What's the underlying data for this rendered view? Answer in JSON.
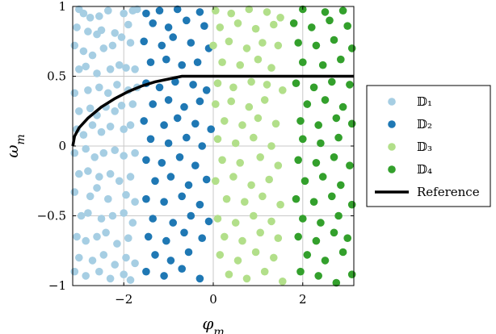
{
  "chart_data": {
    "type": "scatter",
    "xlabel": "φ_m",
    "ylabel": "ω_m",
    "xlim": [
      -3.1416,
      3.1416
    ],
    "ylim": [
      -1,
      1
    ],
    "grid": true,
    "legend_placement": "right-outside",
    "x_ticks": [
      {
        "v": -2,
        "label": "−2"
      },
      {
        "v": 0,
        "label": "0"
      },
      {
        "v": 2,
        "label": "2"
      }
    ],
    "y_ticks": [
      {
        "v": -1,
        "label": "−1"
      },
      {
        "v": -0.5,
        "label": "−0.5"
      },
      {
        "v": 0,
        "label": "0"
      },
      {
        "v": 0.5,
        "label": "0.5"
      },
      {
        "v": 1,
        "label": "1"
      }
    ],
    "series": [
      {
        "name": "𝔻₁",
        "color": "#a6cee3",
        "kind": "scatter",
        "points": [
          [
            -3.0,
            0.98
          ],
          [
            -2.9,
            0.95
          ],
          [
            -2.75,
            0.92
          ],
          [
            -2.55,
            0.93
          ],
          [
            -2.35,
            0.97
          ],
          [
            -2.0,
            0.95
          ],
          [
            -1.8,
            0.97
          ],
          [
            -1.7,
            0.98
          ],
          [
            -3.05,
            0.85
          ],
          [
            -2.8,
            0.82
          ],
          [
            -2.6,
            0.8
          ],
          [
            -2.5,
            0.83
          ],
          [
            -2.2,
            0.81
          ],
          [
            -1.9,
            0.87
          ],
          [
            -3.1,
            0.72
          ],
          [
            -2.9,
            0.68
          ],
          [
            -2.7,
            0.65
          ],
          [
            -2.45,
            0.7
          ],
          [
            -2.25,
            0.72
          ],
          [
            -2.05,
            0.78
          ],
          [
            -1.85,
            0.74
          ],
          [
            -3.0,
            0.55
          ],
          [
            -2.85,
            0.57
          ],
          [
            -2.6,
            0.52
          ],
          [
            -2.3,
            0.55
          ],
          [
            -2.1,
            0.58
          ],
          [
            -1.95,
            0.56
          ],
          [
            -1.75,
            0.55
          ],
          [
            -3.1,
            0.38
          ],
          [
            -2.8,
            0.4
          ],
          [
            -2.55,
            0.42
          ],
          [
            -2.35,
            0.38
          ],
          [
            -2.15,
            0.44
          ],
          [
            -1.9,
            0.4
          ],
          [
            -1.7,
            0.42
          ],
          [
            -3.0,
            0.25
          ],
          [
            -2.75,
            0.27
          ],
          [
            -2.6,
            0.22
          ],
          [
            -2.4,
            0.28
          ],
          [
            -2.2,
            0.25
          ],
          [
            -2.05,
            0.29
          ],
          [
            -1.8,
            0.3
          ],
          [
            -3.05,
            0.12
          ],
          [
            -2.9,
            0.08
          ],
          [
            -2.7,
            0.15
          ],
          [
            -2.5,
            0.1
          ],
          [
            -2.3,
            0.14
          ],
          [
            -2.0,
            0.12
          ],
          [
            -1.85,
            0.15
          ],
          [
            -3.1,
            -0.05
          ],
          [
            -2.85,
            -0.02
          ],
          [
            -2.65,
            -0.08
          ],
          [
            -2.45,
            -0.05
          ],
          [
            -2.2,
            -0.03
          ],
          [
            -2.0,
            -0.07
          ],
          [
            -1.75,
            -0.05
          ],
          [
            -3.0,
            -0.2
          ],
          [
            -2.8,
            -0.18
          ],
          [
            -2.55,
            -0.22
          ],
          [
            -2.3,
            -0.2
          ],
          [
            -2.1,
            -0.25
          ],
          [
            -1.85,
            -0.22
          ],
          [
            -3.1,
            -0.33
          ],
          [
            -2.75,
            -0.36
          ],
          [
            -2.6,
            -0.3
          ],
          [
            -2.35,
            -0.38
          ],
          [
            -1.95,
            -0.35
          ],
          [
            -1.75,
            -0.4
          ],
          [
            -2.95,
            -0.5
          ],
          [
            -2.8,
            -0.48
          ],
          [
            -2.5,
            -0.52
          ],
          [
            -2.25,
            -0.5
          ],
          [
            -2.0,
            -0.48
          ],
          [
            -1.8,
            -0.55
          ],
          [
            -3.05,
            -0.65
          ],
          [
            -2.85,
            -0.68
          ],
          [
            -2.6,
            -0.65
          ],
          [
            -2.4,
            -0.62
          ],
          [
            -2.15,
            -0.7
          ],
          [
            -1.9,
            -0.66
          ],
          [
            -3.0,
            -0.8
          ],
          [
            -2.7,
            -0.82
          ],
          [
            -2.45,
            -0.78
          ],
          [
            -2.2,
            -0.85
          ],
          [
            -1.95,
            -0.8
          ],
          [
            -1.75,
            -0.84
          ],
          [
            -3.1,
            -0.9
          ],
          [
            -2.85,
            -0.93
          ],
          [
            -2.55,
            -0.9
          ],
          [
            -2.3,
            -0.95
          ],
          [
            -2.0,
            -0.92
          ],
          [
            -1.85,
            -0.96
          ]
        ]
      },
      {
        "name": "𝔻₂",
        "color": "#1f78b4",
        "kind": "scatter",
        "points": [
          [
            -1.5,
            0.95
          ],
          [
            -1.2,
            0.97
          ],
          [
            -0.8,
            0.98
          ],
          [
            -0.3,
            0.96
          ],
          [
            -1.35,
            0.88
          ],
          [
            -1.0,
            0.85
          ],
          [
            -0.6,
            0.9
          ],
          [
            -0.2,
            0.86
          ],
          [
            -1.55,
            0.75
          ],
          [
            -1.15,
            0.72
          ],
          [
            -0.9,
            0.78
          ],
          [
            -0.5,
            0.74
          ],
          [
            -0.1,
            0.7
          ],
          [
            -1.4,
            0.6
          ],
          [
            -1.05,
            0.62
          ],
          [
            -0.7,
            0.58
          ],
          [
            -0.35,
            0.6
          ],
          [
            -1.5,
            0.45
          ],
          [
            -1.2,
            0.42
          ],
          [
            -0.85,
            0.46
          ],
          [
            -0.45,
            0.44
          ],
          [
            -0.15,
            0.4
          ],
          [
            -1.35,
            0.3
          ],
          [
            -1.0,
            0.33
          ],
          [
            -0.65,
            0.28
          ],
          [
            -0.3,
            0.32
          ],
          [
            -1.55,
            0.18
          ],
          [
            -1.1,
            0.15
          ],
          [
            -0.8,
            0.2
          ],
          [
            -0.4,
            0.16
          ],
          [
            -0.05,
            0.12
          ],
          [
            -1.4,
            0.05
          ],
          [
            -1.0,
            0.02
          ],
          [
            -0.6,
            0.06
          ],
          [
            -0.25,
            0.0
          ],
          [
            -1.5,
            -0.1
          ],
          [
            -1.15,
            -0.12
          ],
          [
            -0.75,
            -0.08
          ],
          [
            -0.4,
            -0.14
          ],
          [
            -1.3,
            -0.25
          ],
          [
            -0.95,
            -0.22
          ],
          [
            -0.55,
            -0.28
          ],
          [
            -0.15,
            -0.24
          ],
          [
            -1.5,
            -0.38
          ],
          [
            -1.1,
            -0.4
          ],
          [
            -0.7,
            -0.36
          ],
          [
            -0.3,
            -0.42
          ],
          [
            -1.35,
            -0.52
          ],
          [
            -0.9,
            -0.55
          ],
          [
            -0.5,
            -0.5
          ],
          [
            -0.1,
            -0.54
          ],
          [
            -1.45,
            -0.65
          ],
          [
            -1.05,
            -0.68
          ],
          [
            -0.65,
            -0.62
          ],
          [
            -0.25,
            -0.66
          ],
          [
            -1.3,
            -0.78
          ],
          [
            -0.95,
            -0.82
          ],
          [
            -0.55,
            -0.76
          ],
          [
            -1.5,
            -0.9
          ],
          [
            -1.1,
            -0.93
          ],
          [
            -0.7,
            -0.88
          ],
          [
            -0.3,
            -0.95
          ]
        ]
      },
      {
        "name": "𝔻₃",
        "color": "#b2df8a",
        "kind": "scatter",
        "points": [
          [
            0.05,
            0.97
          ],
          [
            0.4,
            0.95
          ],
          [
            0.8,
            0.98
          ],
          [
            1.2,
            0.96
          ],
          [
            1.5,
            0.92
          ],
          [
            0.15,
            0.85
          ],
          [
            0.55,
            0.88
          ],
          [
            0.95,
            0.84
          ],
          [
            1.35,
            0.87
          ],
          [
            0.0,
            0.72
          ],
          [
            0.35,
            0.75
          ],
          [
            0.75,
            0.7
          ],
          [
            1.1,
            0.74
          ],
          [
            1.45,
            0.72
          ],
          [
            0.2,
            0.6
          ],
          [
            0.6,
            0.58
          ],
          [
            1.0,
            0.62
          ],
          [
            1.3,
            0.56
          ],
          [
            0.1,
            0.45
          ],
          [
            0.45,
            0.42
          ],
          [
            0.85,
            0.46
          ],
          [
            1.2,
            0.44
          ],
          [
            1.55,
            0.4
          ],
          [
            0.05,
            0.3
          ],
          [
            0.4,
            0.32
          ],
          [
            0.8,
            0.28
          ],
          [
            1.15,
            0.33
          ],
          [
            0.25,
            0.18
          ],
          [
            0.65,
            0.15
          ],
          [
            1.0,
            0.2
          ],
          [
            1.4,
            0.16
          ],
          [
            0.1,
            0.05
          ],
          [
            0.5,
            0.02
          ],
          [
            0.9,
            0.06
          ],
          [
            1.3,
            0.0
          ],
          [
            0.2,
            -0.1
          ],
          [
            0.6,
            -0.12
          ],
          [
            1.05,
            -0.08
          ],
          [
            1.45,
            -0.14
          ],
          [
            0.05,
            -0.25
          ],
          [
            0.45,
            -0.22
          ],
          [
            0.85,
            -0.28
          ],
          [
            1.25,
            -0.24
          ],
          [
            0.3,
            -0.38
          ],
          [
            0.7,
            -0.4
          ],
          [
            1.1,
            -0.36
          ],
          [
            1.5,
            -0.42
          ],
          [
            0.1,
            -0.52
          ],
          [
            0.5,
            -0.55
          ],
          [
            0.9,
            -0.5
          ],
          [
            1.3,
            -0.54
          ],
          [
            0.25,
            -0.65
          ],
          [
            0.65,
            -0.68
          ],
          [
            1.05,
            -0.62
          ],
          [
            1.45,
            -0.66
          ],
          [
            0.15,
            -0.78
          ],
          [
            0.55,
            -0.82
          ],
          [
            0.95,
            -0.76
          ],
          [
            1.35,
            -0.8
          ],
          [
            0.35,
            -0.92
          ],
          [
            0.75,
            -0.95
          ],
          [
            1.15,
            -0.9
          ],
          [
            1.55,
            -0.97
          ]
        ]
      },
      {
        "name": "𝔻₄",
        "color": "#33a02c",
        "kind": "scatter",
        "points": [
          [
            2.0,
            0.98
          ],
          [
            2.5,
            0.96
          ],
          [
            2.9,
            0.97
          ],
          [
            1.8,
            0.88
          ],
          [
            2.2,
            0.85
          ],
          [
            2.6,
            0.9
          ],
          [
            3.0,
            0.86
          ],
          [
            1.9,
            0.74
          ],
          [
            2.3,
            0.72
          ],
          [
            2.7,
            0.76
          ],
          [
            3.1,
            0.7
          ],
          [
            2.0,
            0.6
          ],
          [
            2.45,
            0.58
          ],
          [
            2.85,
            0.62
          ],
          [
            1.85,
            0.45
          ],
          [
            2.25,
            0.42
          ],
          [
            2.65,
            0.46
          ],
          [
            3.05,
            0.44
          ],
          [
            2.1,
            0.3
          ],
          [
            2.5,
            0.33
          ],
          [
            2.9,
            0.28
          ],
          [
            1.95,
            0.18
          ],
          [
            2.35,
            0.15
          ],
          [
            2.75,
            0.2
          ],
          [
            3.1,
            0.16
          ],
          [
            2.0,
            0.05
          ],
          [
            2.4,
            0.02
          ],
          [
            2.8,
            0.06
          ],
          [
            1.9,
            -0.1
          ],
          [
            2.3,
            -0.12
          ],
          [
            2.7,
            -0.08
          ],
          [
            3.05,
            -0.14
          ],
          [
            2.05,
            -0.25
          ],
          [
            2.45,
            -0.22
          ],
          [
            2.85,
            -0.28
          ],
          [
            1.85,
            -0.38
          ],
          [
            2.25,
            -0.4
          ],
          [
            2.65,
            -0.36
          ],
          [
            3.1,
            -0.42
          ],
          [
            2.0,
            -0.52
          ],
          [
            2.4,
            -0.55
          ],
          [
            2.8,
            -0.5
          ],
          [
            1.9,
            -0.65
          ],
          [
            2.3,
            -0.68
          ],
          [
            2.7,
            -0.62
          ],
          [
            3.0,
            -0.66
          ],
          [
            2.1,
            -0.78
          ],
          [
            2.5,
            -0.82
          ],
          [
            2.9,
            -0.76
          ],
          [
            1.95,
            -0.9
          ],
          [
            2.35,
            -0.93
          ],
          [
            2.75,
            -0.98
          ],
          [
            3.1,
            -0.92
          ]
        ]
      },
      {
        "name": "Reference",
        "color": "#000000",
        "kind": "line",
        "points": [
          [
            -3.14,
            0.0
          ],
          [
            -3.1,
            0.07
          ],
          [
            -3.0,
            0.13
          ],
          [
            -2.8,
            0.2
          ],
          [
            -2.5,
            0.28
          ],
          [
            -2.2,
            0.34
          ],
          [
            -1.9,
            0.39
          ],
          [
            -1.6,
            0.43
          ],
          [
            -1.3,
            0.46
          ],
          [
            -1.0,
            0.48
          ],
          [
            -0.7,
            0.5
          ],
          [
            -0.3,
            0.5
          ],
          [
            0.3,
            0.5
          ],
          [
            1.0,
            0.5
          ],
          [
            2.0,
            0.5
          ],
          [
            3.14,
            0.5
          ]
        ]
      }
    ]
  }
}
